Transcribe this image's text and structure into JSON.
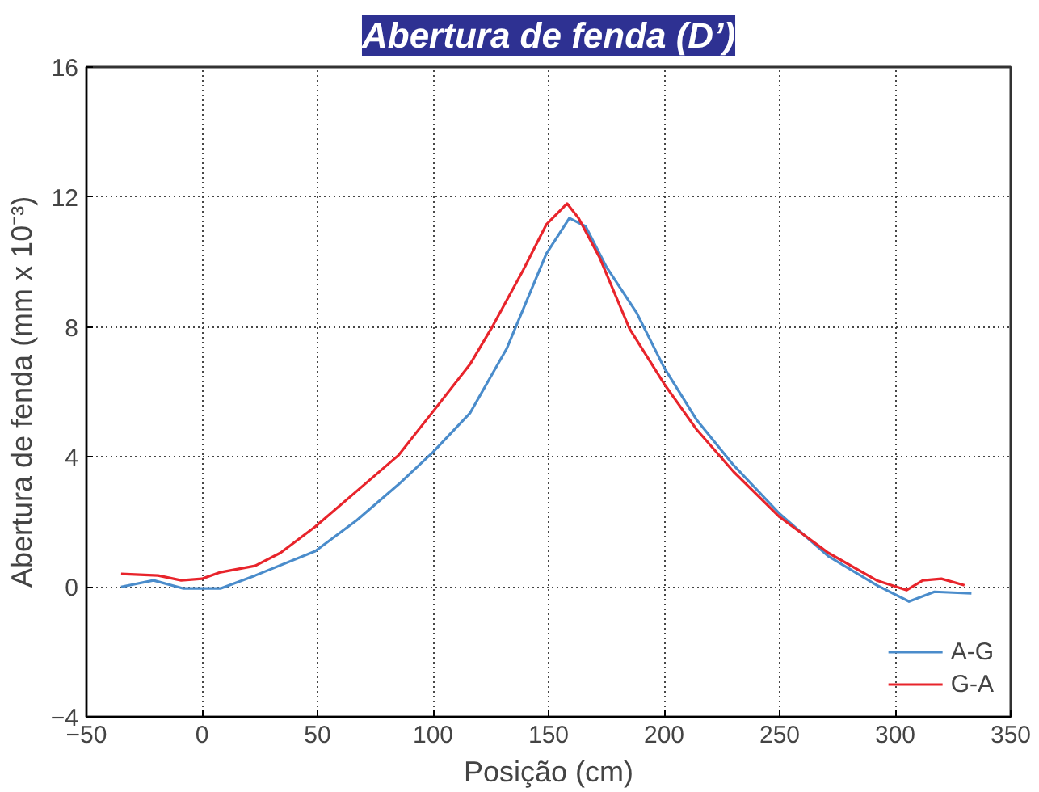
{
  "chart_data": {
    "type": "line",
    "title": "Abertura de fenda (D’)",
    "xlabel": "Posição (cm)",
    "ylabel": "Abertura de fenda (mm x 10⁻³)",
    "xlim": [
      -50,
      350
    ],
    "xticks": [
      -50,
      0,
      50,
      100,
      150,
      200,
      250,
      300,
      350
    ],
    "ylim": [
      -4,
      16
    ],
    "yticks": [
      -4,
      0,
      4,
      8,
      12,
      16
    ],
    "grid": true,
    "legend": "bottom right",
    "line_style": "solid",
    "series": [
      {
        "name": "A-G",
        "color": "#4a8ccb",
        "x": [
          -35,
          -21,
          -8,
          8,
          23,
          49,
          67,
          85,
          100,
          116,
          132,
          149,
          159,
          166,
          175,
          188,
          200,
          214,
          230,
          250,
          271,
          292,
          306,
          317,
          333
        ],
        "values": [
          0,
          0.2,
          -0.05,
          -0.05,
          0.35,
          1.1,
          2.05,
          3.15,
          4.15,
          5.35,
          7.35,
          10.25,
          11.35,
          11.1,
          9.85,
          8.45,
          6.75,
          5.15,
          3.75,
          2.25,
          0.95,
          0.05,
          -0.45,
          -0.15,
          -0.2
        ]
      },
      {
        "name": "G-A",
        "color": "#e8242b",
        "x": [
          -35,
          -19,
          -9,
          0,
          8,
          23,
          34,
          49,
          67,
          85,
          100,
          116,
          126,
          139,
          149,
          158,
          163,
          172,
          185,
          200,
          214,
          230,
          250,
          271,
          292,
          305,
          312,
          320,
          330
        ],
        "values": [
          0.4,
          0.35,
          0.2,
          0.25,
          0.45,
          0.65,
          1.05,
          1.85,
          2.95,
          4.05,
          5.4,
          6.85,
          8.05,
          9.75,
          11.15,
          11.8,
          11.35,
          10.15,
          7.95,
          6.25,
          4.85,
          3.55,
          2.15,
          1.05,
          0.2,
          -0.1,
          0.2,
          0.25,
          0.05
        ]
      }
    ]
  }
}
